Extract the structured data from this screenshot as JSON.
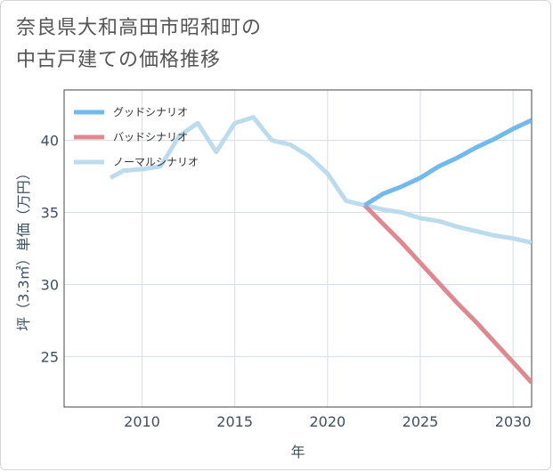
{
  "title": {
    "line1": "奈良県大和高田市昭和町の",
    "line2": "中古戸建ての価格推移"
  },
  "chart_data": {
    "type": "line",
    "xlabel": "年",
    "ylabel": "坪（3.3㎡）単価（万円）",
    "xlim": [
      2005.8,
      2031
    ],
    "ylim": [
      21.5,
      43.5
    ],
    "x_ticks": [
      2010,
      2015,
      2020,
      2025,
      2030
    ],
    "y_ticks": [
      25,
      30,
      35,
      40
    ],
    "x_tick_labels": [
      "2010",
      "2015",
      "2020",
      "2025",
      "2030"
    ],
    "y_tick_labels": [
      "25",
      "30",
      "35",
      "40"
    ],
    "grid": true,
    "legend_position": "top-left",
    "series": [
      {
        "name": "グッドシナリオ",
        "color": "#72b9ec",
        "x": [
          2022,
          2023,
          2024,
          2025,
          2026,
          2027,
          2028,
          2029,
          2030,
          2031
        ],
        "y": [
          35.5,
          36.3,
          36.8,
          37.4,
          38.2,
          38.8,
          39.5,
          40.1,
          40.8,
          41.4
        ]
      },
      {
        "name": "バッドシナリオ",
        "color": "#e0888f",
        "x": [
          2022,
          2023,
          2024,
          2025,
          2026,
          2027,
          2028,
          2029,
          2030,
          2031
        ],
        "y": [
          35.5,
          34.2,
          32.9,
          31.5,
          30.1,
          28.7,
          27.4,
          26.0,
          24.6,
          23.2
        ]
      },
      {
        "name": "ノーマルシナリオ",
        "color": "#bcdcee",
        "x": [
          2008.3,
          2009,
          2010,
          2011,
          2012,
          2013,
          2014,
          2015,
          2016,
          2017,
          2018,
          2019,
          2020,
          2021,
          2022,
          2023,
          2024,
          2025,
          2026,
          2027,
          2028,
          2029,
          2030,
          2031
        ],
        "y": [
          37.4,
          37.9,
          38.0,
          38.2,
          40.3,
          41.2,
          39.2,
          41.2,
          41.6,
          40.0,
          39.7,
          38.9,
          37.7,
          35.8,
          35.5,
          35.2,
          35.0,
          34.6,
          34.4,
          34.0,
          33.7,
          33.4,
          33.2,
          32.9
        ]
      }
    ]
  }
}
